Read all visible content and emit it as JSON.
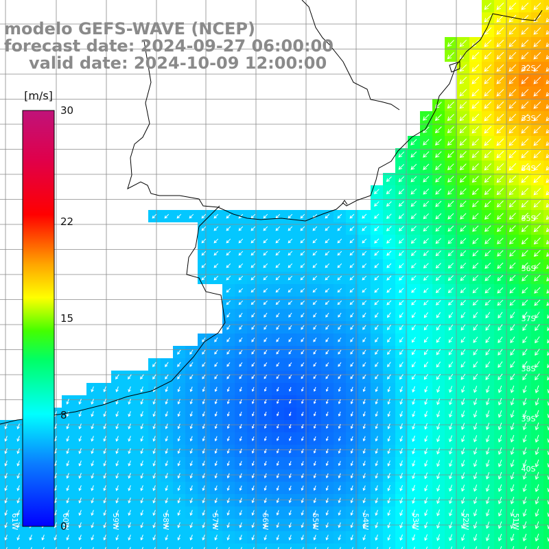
{
  "title": {
    "line1": "modelo GEFS-WAVE (NCEP)",
    "line2": "forecast date: 2024-09-27 06:00:00",
    "line3": "valid date: 2024-10-09 12:00:00"
  },
  "colorbar": {
    "unit": "[m/s]",
    "min": 0,
    "max": 30,
    "ticks": [
      {
        "label": "30",
        "value": 30
      },
      {
        "label": "22",
        "value": 22
      },
      {
        "label": "15",
        "value": 15
      },
      {
        "label": "8",
        "value": 8
      },
      {
        "label": "0",
        "value": 0
      }
    ]
  },
  "lat_labels": [
    "32S",
    "33S",
    "34S",
    "35S",
    "36S",
    "37S",
    "38S",
    "39S",
    "40S"
  ],
  "lon_labels": [
    "61W",
    "60W",
    "59W",
    "58W",
    "57W",
    "56W",
    "55W",
    "54W",
    "53W",
    "52W",
    "51W"
  ],
  "colors": {
    "land": "#ffffff",
    "coastline": "#000000",
    "grid": "#888888",
    "arrows": "#ffffff",
    "title_text": "#8a8a8a"
  }
}
